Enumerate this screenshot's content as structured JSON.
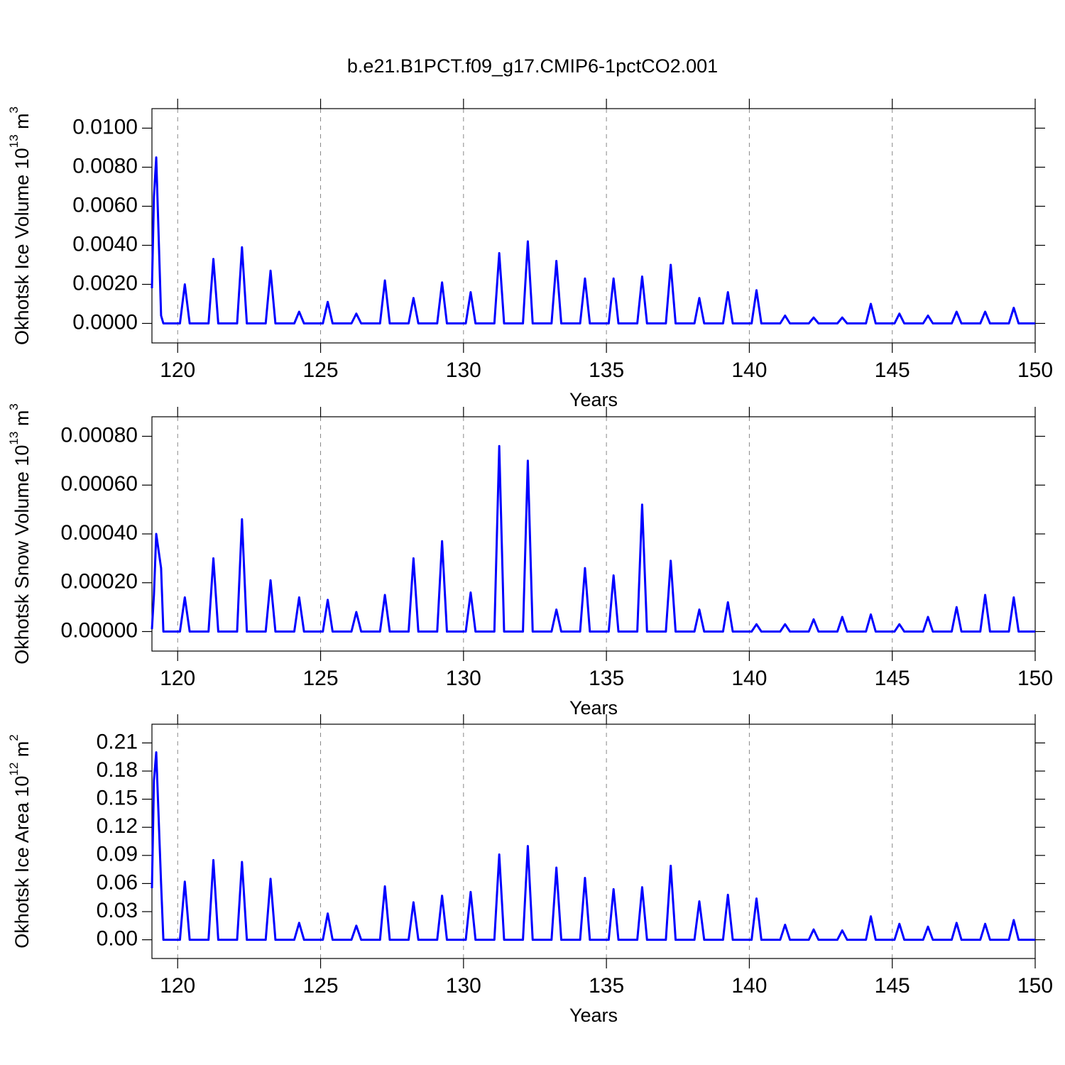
{
  "title": "b.e21.B1PCT.f09_g17.CMIP6-1pctCO2.001",
  "chart_data": [
    {
      "type": "line",
      "xlabel": "Years",
      "ylabel": [
        "Okhotsk Ice Volume 10",
        "13",
        " m",
        "3"
      ],
      "color": "#0000ff",
      "grid": "x",
      "xlim": [
        119.1,
        150
      ],
      "xticks": [
        120,
        125,
        130,
        135,
        140,
        145,
        150
      ],
      "ylim": [
        -0.001,
        0.011
      ],
      "yticks": [
        {
          "value": 0,
          "label": "0.0000"
        },
        {
          "value": 0.002,
          "label": "0.0020"
        },
        {
          "value": 0.004,
          "label": "0.0040"
        },
        {
          "value": 0.006,
          "label": "0.0060"
        },
        {
          "value": 0.008,
          "label": "0.0080"
        },
        {
          "value": 0.01,
          "label": "0.0100"
        }
      ],
      "x": [
        119.1,
        119.17,
        119.25,
        119.42,
        119.5,
        120.08,
        120.25,
        120.42,
        121.08,
        121.25,
        121.42,
        122.08,
        122.25,
        122.42,
        123.08,
        123.25,
        123.42,
        124.08,
        124.25,
        124.42,
        125.08,
        125.25,
        125.42,
        126.08,
        126.25,
        126.42,
        127.08,
        127.25,
        127.42,
        128.08,
        128.25,
        128.42,
        129.08,
        129.25,
        129.42,
        130.08,
        130.25,
        130.42,
        131.08,
        131.25,
        131.42,
        132.08,
        132.25,
        132.42,
        133.08,
        133.25,
        133.42,
        134.08,
        134.25,
        134.42,
        135.08,
        135.25,
        135.42,
        136.08,
        136.25,
        136.42,
        137.08,
        137.25,
        137.42,
        138.08,
        138.25,
        138.42,
        139.08,
        139.25,
        139.42,
        140.08,
        140.25,
        140.42,
        141.08,
        141.25,
        141.42,
        142.08,
        142.25,
        142.42,
        143.08,
        143.25,
        143.42,
        144.08,
        144.25,
        144.42,
        145.08,
        145.25,
        145.42,
        146.08,
        146.25,
        146.42,
        147.08,
        147.25,
        147.42,
        148.08,
        148.25,
        148.42,
        149.08,
        149.25,
        149.42,
        150
      ],
      "values": [
        0.0018,
        0.0065,
        0.0085,
        0.0004,
        0,
        0,
        0.002,
        0,
        0,
        0.0033,
        0,
        0,
        0.0039,
        0,
        0,
        0.0027,
        0,
        0,
        0.0006,
        0,
        0,
        0.0011,
        0,
        0,
        0.0005,
        0,
        0,
        0.0022,
        0,
        0,
        0.0013,
        0,
        0,
        0.0021,
        0,
        0,
        0.0016,
        0,
        0,
        0.0036,
        0,
        0,
        0.0042,
        0,
        0,
        0.0032,
        0,
        0,
        0.0023,
        0,
        0,
        0.0023,
        0,
        0,
        0.0024,
        0,
        0,
        0.003,
        0,
        0,
        0.0013,
        0,
        0,
        0.0016,
        0,
        0,
        0.0017,
        0,
        0,
        0.0004,
        0,
        0,
        0.0003,
        0,
        0,
        0.0003,
        0,
        0,
        0.001,
        0,
        0,
        0.0005,
        0,
        0,
        0.0004,
        0,
        0,
        0.0006,
        0,
        0,
        0.0006,
        0,
        0,
        0.0008,
        0,
        0
      ]
    },
    {
      "type": "line",
      "xlabel": "Years",
      "ylabel": [
        "Okhotsk Snow Volume 10",
        "13",
        " m",
        "3"
      ],
      "color": "#0000ff",
      "grid": "x",
      "xlim": [
        119.1,
        150
      ],
      "xticks": [
        120,
        125,
        130,
        135,
        140,
        145,
        150
      ],
      "ylim": [
        -8e-05,
        0.00088
      ],
      "yticks": [
        {
          "value": 0,
          "label": "0.00000"
        },
        {
          "value": 0.0002,
          "label": "0.00020"
        },
        {
          "value": 0.0004,
          "label": "0.00040"
        },
        {
          "value": 0.0006,
          "label": "0.00060"
        },
        {
          "value": 0.0008,
          "label": "0.00080"
        }
      ],
      "x": [
        119.1,
        119.17,
        119.25,
        119.42,
        119.5,
        120.08,
        120.25,
        120.42,
        121.08,
        121.25,
        121.42,
        122.08,
        122.25,
        122.42,
        123.08,
        123.25,
        123.42,
        124.08,
        124.25,
        124.42,
        125.08,
        125.25,
        125.42,
        126.08,
        126.25,
        126.42,
        127.08,
        127.25,
        127.42,
        128.08,
        128.25,
        128.42,
        129.08,
        129.25,
        129.42,
        130.08,
        130.25,
        130.42,
        131.08,
        131.25,
        131.42,
        132.08,
        132.25,
        132.42,
        133.08,
        133.25,
        133.42,
        134.08,
        134.25,
        134.42,
        135.08,
        135.25,
        135.42,
        136.08,
        136.25,
        136.42,
        137.08,
        137.25,
        137.42,
        138.08,
        138.25,
        138.42,
        139.08,
        139.25,
        139.42,
        140.08,
        140.25,
        140.42,
        141.08,
        141.25,
        141.42,
        142.08,
        142.25,
        142.42,
        143.08,
        143.25,
        143.42,
        144.08,
        144.25,
        144.42,
        145.08,
        145.25,
        145.42,
        146.08,
        146.25,
        146.42,
        147.08,
        147.25,
        147.42,
        148.08,
        148.25,
        148.42,
        149.08,
        149.25,
        149.42,
        150
      ],
      "values": [
        1e-05,
        0.00015,
        0.0004,
        0.00026,
        0,
        0,
        0.00014,
        0,
        0,
        0.0003,
        0,
        0,
        0.00046,
        0,
        0,
        0.00021,
        0,
        0,
        0.00014,
        0,
        0,
        0.00013,
        0,
        0,
        8e-05,
        0,
        0,
        0.00015,
        0,
        0,
        0.0003,
        0,
        0,
        0.00037,
        0,
        0,
        0.00016,
        0,
        0,
        0.00076,
        0,
        0,
        0.0007,
        0,
        0,
        9e-05,
        0,
        0,
        0.00026,
        0,
        0,
        0.00023,
        0,
        0,
        0.00052,
        0,
        0,
        0.00029,
        0,
        0,
        9e-05,
        0,
        0,
        0.00012,
        0,
        0,
        3e-05,
        0,
        0,
        3e-05,
        0,
        0,
        5e-05,
        0,
        0,
        6e-05,
        0,
        0,
        7e-05,
        0,
        0,
        3e-05,
        0,
        0,
        6e-05,
        0,
        0,
        0.0001,
        0,
        0,
        0.00015,
        0,
        0,
        0.00014,
        0,
        0
      ]
    },
    {
      "type": "line",
      "xlabel": "Years",
      "ylabel": [
        "Okhotsk Ice Area 10",
        "12",
        " m",
        "2"
      ],
      "color": "#0000ff",
      "grid": "x",
      "xlim": [
        119.1,
        150
      ],
      "xticks": [
        120,
        125,
        130,
        135,
        140,
        145,
        150
      ],
      "ylim": [
        -0.02,
        0.23
      ],
      "yticks": [
        {
          "value": 0,
          "label": "0.00"
        },
        0.03,
        0.06,
        0.09,
        0.12,
        0.15,
        0.18,
        0.21
      ],
      "x": [
        119.1,
        119.17,
        119.25,
        119.42,
        119.5,
        120.08,
        120.25,
        120.42,
        121.08,
        121.25,
        121.42,
        122.08,
        122.25,
        122.42,
        123.08,
        123.25,
        123.42,
        124.08,
        124.25,
        124.42,
        125.08,
        125.25,
        125.42,
        126.08,
        126.25,
        126.42,
        127.08,
        127.25,
        127.42,
        128.08,
        128.25,
        128.42,
        129.08,
        129.25,
        129.42,
        130.08,
        130.25,
        130.42,
        131.08,
        131.25,
        131.42,
        132.08,
        132.25,
        132.42,
        133.08,
        133.25,
        133.42,
        134.08,
        134.25,
        134.42,
        135.08,
        135.25,
        135.42,
        136.08,
        136.25,
        136.42,
        137.08,
        137.25,
        137.42,
        138.08,
        138.25,
        138.42,
        139.08,
        139.25,
        139.42,
        140.08,
        140.25,
        140.42,
        141.08,
        141.25,
        141.42,
        142.08,
        142.25,
        142.42,
        143.08,
        143.25,
        143.42,
        144.08,
        144.25,
        144.42,
        145.08,
        145.25,
        145.42,
        146.08,
        146.25,
        146.42,
        147.08,
        147.25,
        147.42,
        148.08,
        148.25,
        148.42,
        149.08,
        149.25,
        149.42,
        150
      ],
      "values": [
        0.055,
        0.17,
        0.2,
        0.06,
        0,
        0,
        0.062,
        0,
        0,
        0.085,
        0,
        0,
        0.083,
        0,
        0,
        0.065,
        0,
        0,
        0.018,
        0,
        0,
        0.028,
        0,
        0,
        0.015,
        0,
        0,
        0.057,
        0,
        0,
        0.04,
        0,
        0,
        0.047,
        0,
        0,
        0.051,
        0,
        0,
        0.091,
        0,
        0,
        0.1,
        0,
        0,
        0.077,
        0,
        0,
        0.066,
        0,
        0,
        0.054,
        0,
        0,
        0.056,
        0,
        0,
        0.079,
        0,
        0,
        0.041,
        0,
        0,
        0.048,
        0,
        0,
        0.044,
        0,
        0,
        0.016,
        0,
        0,
        0.011,
        0,
        0,
        0.01,
        0,
        0,
        0.025,
        0,
        0,
        0.017,
        0,
        0,
        0.014,
        0,
        0,
        0.018,
        0,
        0,
        0.017,
        0,
        0,
        0.021,
        0,
        0
      ]
    }
  ]
}
